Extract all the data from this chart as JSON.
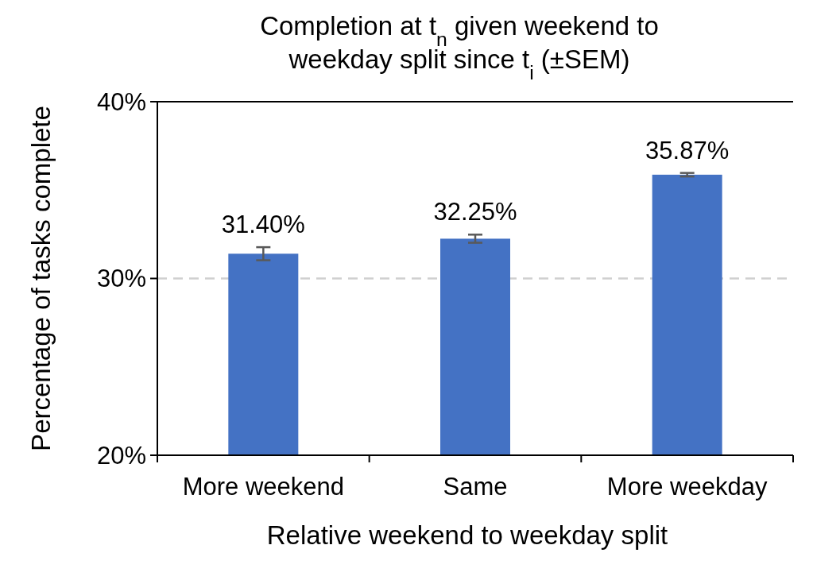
{
  "chart_data": {
    "type": "bar",
    "title": "Completion at t$_{n}$ given weekend to weekday split since t$_{i}$ (±SEM)",
    "xlabel": "Relative weekend to weekday split",
    "ylabel": "Percentage of tasks complete",
    "categories": [
      "More weekend",
      "Same",
      "More weekday"
    ],
    "values": [
      31.4,
      32.25,
      35.87
    ],
    "errors": [
      0.37,
      0.23,
      0.1
    ],
    "value_labels": [
      "31.40%",
      "32.25%",
      "35.87%"
    ],
    "color": "#4472c4",
    "ylim": [
      20,
      40
    ],
    "yticks": [
      {
        "value": 20,
        "label": "20%"
      },
      {
        "value": 30,
        "label": "30%"
      },
      {
        "value": 40,
        "label": "40%"
      }
    ],
    "grid": "y",
    "line_style": "dashed"
  }
}
